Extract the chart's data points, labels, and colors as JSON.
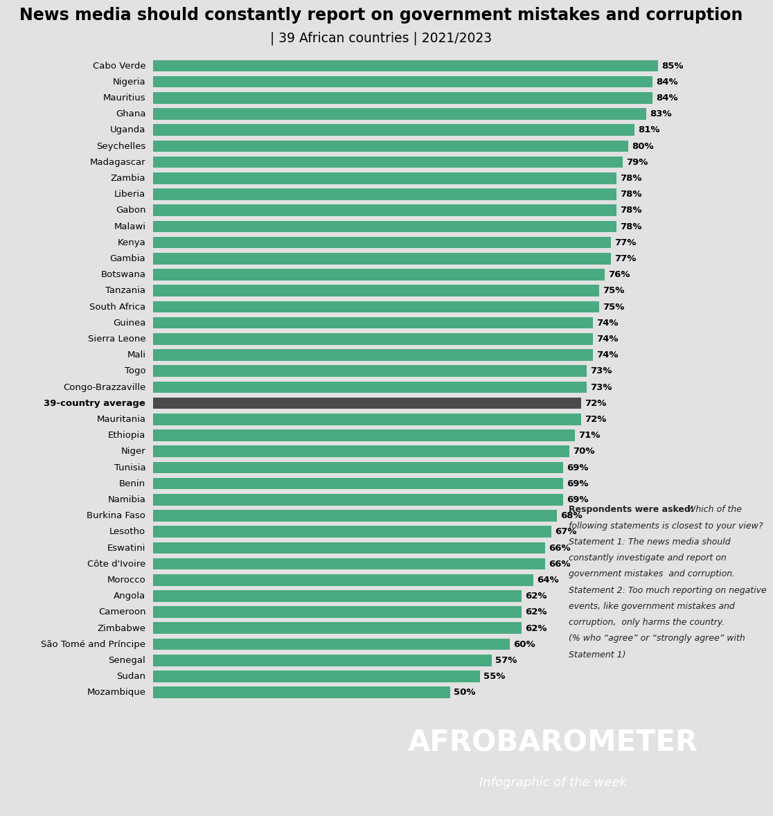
{
  "title_line1": "News media should constantly report on government mistakes and corruption",
  "title_line2": "| 39 African countries | 2021/2023",
  "countries": [
    "Cabo Verde",
    "Nigeria",
    "Mauritius",
    "Ghana",
    "Uganda",
    "Seychelles",
    "Madagascar",
    "Zambia",
    "Liberia",
    "Gabon",
    "Malawi",
    "Kenya",
    "Gambia",
    "Botswana",
    "Tanzania",
    "South Africa",
    "Guinea",
    "Sierra Leone",
    "Mali",
    "Togo",
    "Congo-Brazzaville",
    "39-country average",
    "Mauritania",
    "Ethiopia",
    "Niger",
    "Tunisia",
    "Benin",
    "Namibia",
    "Burkina Faso",
    "Lesotho",
    "Eswatini",
    "Côte d'Ivoire",
    "Morocco",
    "Angola",
    "Cameroon",
    "Zimbabwe",
    "São Tomé and Príncipe",
    "Senegal",
    "Sudan",
    "Mozambique"
  ],
  "values": [
    85,
    84,
    84,
    83,
    81,
    80,
    79,
    78,
    78,
    78,
    78,
    77,
    77,
    76,
    75,
    75,
    74,
    74,
    74,
    73,
    73,
    72,
    72,
    71,
    70,
    69,
    69,
    69,
    68,
    67,
    66,
    66,
    64,
    62,
    62,
    62,
    60,
    57,
    55,
    50
  ],
  "bar_color": "#4aaa82",
  "average_bar_color": "#4a4a4a",
  "average_index": 21,
  "bg_color": "#e2e2e2",
  "footer_bg_color": "#484848",
  "annotation_bold": "Respondents were asked:",
  "annotation_italic_lines": [
    " Which of the",
    "following statements is closest to your view?",
    "Statement 1: The news media should",
    "constantly investigate and report on",
    "government mistakes  and corruption.",
    "Statement 2: Too much reporting on negative",
    "events, like government mistakes and",
    "corruption,  only harms the country.",
    "(% who “agree” or “strongly agree” with",
    "Statement 1)"
  ],
  "footer_text1": "AFROBAROMETER",
  "footer_text2": "Infographic of the week"
}
